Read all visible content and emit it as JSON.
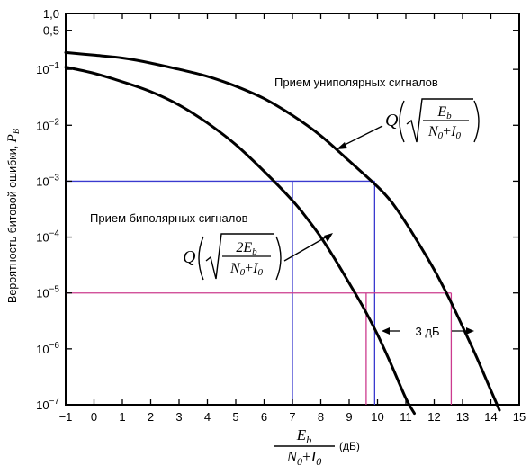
{
  "chart_data": {
    "type": "line",
    "xlim": [
      -1,
      15
    ],
    "ylim": [
      1e-07,
      1.0
    ],
    "y_scale": "log",
    "x_ticks": [
      "−1",
      "0",
      "1",
      "2",
      "3",
      "4",
      "5",
      "6",
      "7",
      "8",
      "9",
      "10",
      "11",
      "12",
      "13",
      "14",
      "15"
    ],
    "y_ticks": [
      {
        "value": 1.0,
        "base": "1,0",
        "exp": ""
      },
      {
        "value": 0.5,
        "base": "0,5",
        "exp": ""
      },
      {
        "value": 0.1,
        "base": "10",
        "exp": "−1"
      },
      {
        "value": 0.01,
        "base": "10",
        "exp": "−2"
      },
      {
        "value": 0.001,
        "base": "10",
        "exp": "−3"
      },
      {
        "value": 0.0001,
        "base": "10",
        "exp": "−4"
      },
      {
        "value": 1e-05,
        "base": "10",
        "exp": "−5"
      },
      {
        "value": 1e-06,
        "base": "10",
        "exp": "−6"
      },
      {
        "value": 1e-07,
        "base": "10",
        "exp": "−7"
      }
    ],
    "ylabel": {
      "text": "Вероятность битовой ошибки, ",
      "var": "P",
      "sub": "B"
    },
    "xlabel": {
      "num": "E",
      "num_sub": "b",
      "den1": "N",
      "den1_sub": "0",
      "plus": "+",
      "den2": "I",
      "den2_sub": "0",
      "unit": "(дБ)"
    },
    "series": [
      {
        "name": "Прием униполярных сигналов",
        "color": "#000000",
        "x": [
          -1,
          0,
          1,
          2,
          3,
          4,
          5,
          6,
          7,
          8,
          9,
          10,
          10.5,
          11,
          11.5,
          12,
          12.5,
          13,
          13.5,
          14,
          14.3
        ],
        "y": [
          0.2,
          0.18,
          0.16,
          0.13,
          0.1,
          0.075,
          0.05,
          0.03,
          0.015,
          0.0065,
          0.0023,
          0.0008,
          0.00042,
          0.00018,
          7e-05,
          2.6e-05,
          8.5e-06,
          2.5e-06,
          7e-07,
          1.8e-07,
          8e-08
        ]
      },
      {
        "name": "Прием биполярных сигналов",
        "color": "#000000",
        "x": [
          -1,
          0,
          1,
          2,
          3,
          4,
          5,
          6,
          7,
          7.5,
          8,
          8.5,
          9,
          9.5,
          10,
          10.5,
          11,
          11.3
        ],
        "y": [
          0.11,
          0.085,
          0.06,
          0.04,
          0.023,
          0.011,
          0.0045,
          0.0015,
          0.00045,
          0.00022,
          0.0001,
          4e-05,
          1.5e-05,
          5.5e-06,
          1.8e-06,
          5e-07,
          1.3e-07,
          7e-08
        ]
      }
    ],
    "ref_lines": [
      {
        "color": "#3a3acf",
        "y": 0.001,
        "x_end": 9.9,
        "drops": [
          7,
          9.9
        ]
      },
      {
        "color": "#cc3b8e",
        "y": 1e-05,
        "x_end": 12.6,
        "drops": [
          9.6,
          12.6
        ]
      }
    ],
    "annotations": {
      "uni_label": "Прием униполярных сигналов",
      "bi_label": "Прием биполярных сигналов",
      "gap": "3 дБ",
      "uni_formula": {
        "q": "Q",
        "num": "E",
        "num_sub": "b",
        "den": "N",
        "den_sub": "0",
        "plus": "+",
        "den2": "I",
        "den2_sub": "0"
      },
      "bi_formula": {
        "q": "Q",
        "num": "2E",
        "num_sub": "b",
        "den": "N",
        "den_sub": "0",
        "plus": "+",
        "den2": "I",
        "den2_sub": "0"
      }
    },
    "grid": false,
    "legend": "none"
  }
}
